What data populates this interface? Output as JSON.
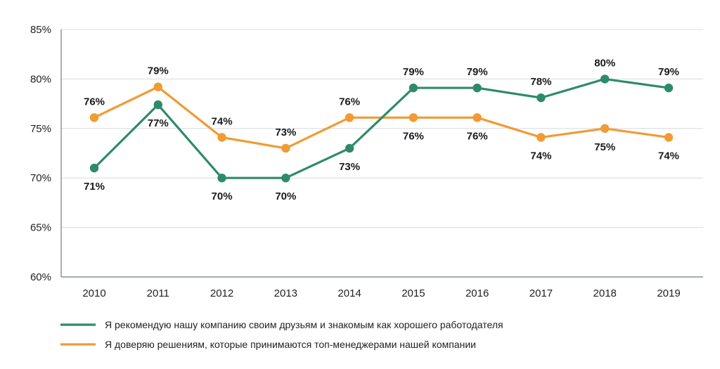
{
  "chart_data": {
    "type": "line",
    "categories": [
      "2010",
      "2011",
      "2012",
      "2013",
      "2014",
      "2015",
      "2016",
      "2017",
      "2018",
      "2019"
    ],
    "ylim": [
      60,
      85
    ],
    "yticks": [
      60,
      65,
      70,
      75,
      80,
      85
    ],
    "ytick_labels": [
      "60%",
      "65%",
      "70%",
      "75%",
      "80%",
      "85%"
    ],
    "grid": "horizontal",
    "legend_position": "bottom-left",
    "series": [
      {
        "name": "Я рекомендую нашу компанию своим друзьям и знакомым как хорошего работодателя",
        "color": "#2e8b6a",
        "values": [
          71,
          77.4,
          70,
          70,
          73,
          79.1,
          79.1,
          78.1,
          80,
          79.1
        ],
        "labels": [
          "71%",
          "77%",
          "70%",
          "70%",
          "73%",
          "79%",
          "79%",
          "78%",
          "80%",
          "79%"
        ]
      },
      {
        "name": "Я доверяю решениям, которые принимаются топ-менеджерами нашей компании",
        "color": "#f29a33",
        "values": [
          76.1,
          79.2,
          74.1,
          73,
          76.1,
          76.1,
          76.1,
          74.1,
          75,
          74.1
        ],
        "labels": [
          "76%",
          "79%",
          "74%",
          "73%",
          "76%",
          "76%",
          "76%",
          "74%",
          "75%",
          "74%"
        ]
      }
    ]
  }
}
